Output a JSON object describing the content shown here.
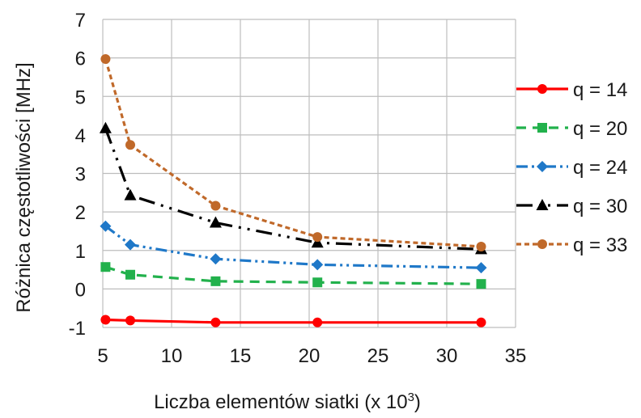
{
  "chart_data": {
    "type": "line",
    "title": "",
    "xlabel": "Liczba elementów siatki (x 10",
    "xlabel_superscript": "3",
    "xlabel_suffix": ")",
    "ylabel": "Różnica częstotliwości [MHz]",
    "xlim": [
      5,
      35
    ],
    "ylim": [
      -1,
      7
    ],
    "xticks": [
      "5",
      "10",
      "15",
      "20",
      "25",
      "30",
      "35"
    ],
    "yticks": [
      "-1",
      "0",
      "1",
      "2",
      "3",
      "4",
      "5",
      "6",
      "7"
    ],
    "grid": true,
    "legend_position": "right",
    "x": [
      5.2,
      7.0,
      13.2,
      20.6,
      32.5
    ],
    "series": [
      {
        "name": "q = 14",
        "values": [
          -0.8,
          -0.82,
          -0.87,
          -0.87,
          -0.87
        ],
        "color": "#ff0000",
        "marker": "circle",
        "dash": ""
      },
      {
        "name": "q = 20",
        "values": [
          0.57,
          0.37,
          0.2,
          0.17,
          0.13
        ],
        "color": "#22b14c",
        "marker": "square",
        "dash": "12 8"
      },
      {
        "name": "q = 24",
        "values": [
          1.63,
          1.15,
          0.78,
          0.63,
          0.55
        ],
        "color": "#1f78c8",
        "marker": "diamond",
        "dash": "14 5 3 5 3 5"
      },
      {
        "name": "q = 30",
        "values": [
          4.17,
          2.43,
          1.72,
          1.2,
          1.03
        ],
        "color": "#000000",
        "marker": "triangle",
        "dash": "20 8 3 8 3 8"
      },
      {
        "name": "q = 33",
        "values": [
          5.97,
          3.74,
          2.16,
          1.35,
          1.1
        ],
        "color": "#c0692a",
        "marker": "circle",
        "dash": "6 4"
      }
    ]
  }
}
